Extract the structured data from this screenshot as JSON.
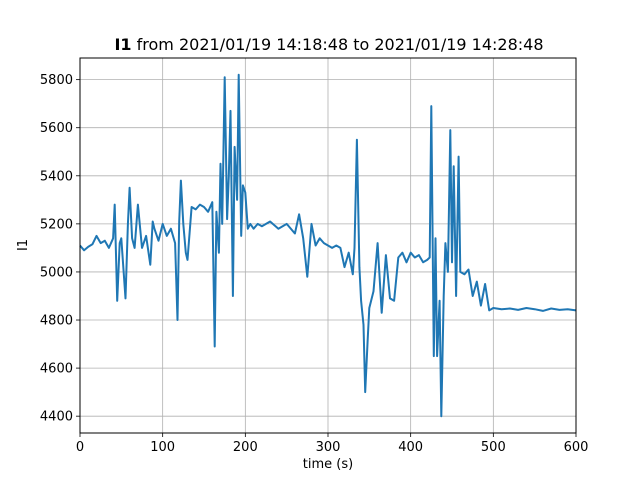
{
  "chart_data": {
    "type": "line",
    "title": {
      "bold": "I1",
      "rest": " from 2021/01/19 14:18:48 to 2021/01/19 14:28:48"
    },
    "xlabel": "time (s)",
    "ylabel": "I1",
    "xlim": [
      0,
      600
    ],
    "ylim": [
      4330,
      5890
    ],
    "x_ticks": [
      0,
      100,
      200,
      300,
      400,
      500,
      600
    ],
    "y_ticks": [
      4400,
      4600,
      4800,
      5000,
      5200,
      5400,
      5600,
      5800
    ],
    "grid": true,
    "legend": "none",
    "series": [
      {
        "color": "#1f77b4",
        "x": [
          0,
          5,
          10,
          15,
          20,
          25,
          30,
          35,
          40,
          42,
          45,
          48,
          50,
          55,
          58,
          60,
          63,
          66,
          70,
          75,
          80,
          85,
          88,
          90,
          95,
          100,
          105,
          110,
          115,
          118,
          120,
          122,
          125,
          128,
          130,
          135,
          140,
          145,
          150,
          155,
          160,
          163,
          165,
          168,
          170,
          172,
          175,
          178,
          180,
          182,
          185,
          187,
          190,
          192,
          195,
          197,
          200,
          203,
          206,
          210,
          215,
          220,
          230,
          240,
          250,
          260,
          265,
          270,
          275,
          280,
          285,
          290,
          295,
          300,
          305,
          310,
          315,
          320,
          325,
          330,
          332,
          335,
          338,
          340,
          343,
          345,
          348,
          350,
          355,
          360,
          365,
          370,
          375,
          380,
          385,
          390,
          395,
          400,
          405,
          410,
          415,
          420,
          423,
          425,
          428,
          430,
          432,
          435,
          437,
          440,
          442,
          445,
          448,
          450,
          452,
          455,
          458,
          460,
          465,
          470,
          475,
          480,
          485,
          490,
          495,
          500,
          510,
          520,
          530,
          540,
          550,
          560,
          570,
          580,
          590,
          600
        ],
        "values": [
          5110,
          5090,
          5105,
          5115,
          5150,
          5120,
          5130,
          5100,
          5140,
          5280,
          4880,
          5120,
          5140,
          4890,
          5200,
          5350,
          5140,
          5100,
          5280,
          5100,
          5150,
          5030,
          5210,
          5180,
          5130,
          5200,
          5150,
          5180,
          5120,
          4800,
          5210,
          5380,
          5200,
          5080,
          5050,
          5270,
          5260,
          5280,
          5270,
          5250,
          5290,
          4690,
          5250,
          5080,
          5450,
          5200,
          5810,
          5220,
          5400,
          5670,
          4900,
          5520,
          5300,
          5820,
          5150,
          5360,
          5330,
          5180,
          5200,
          5180,
          5200,
          5190,
          5210,
          5180,
          5200,
          5160,
          5240,
          5140,
          4980,
          5200,
          5110,
          5140,
          5120,
          5110,
          5100,
          5110,
          5100,
          5020,
          5080,
          4990,
          5100,
          5550,
          5020,
          4880,
          4780,
          4500,
          4720,
          4850,
          4920,
          5120,
          4830,
          5070,
          4890,
          4880,
          5060,
          5080,
          5040,
          5080,
          5060,
          5070,
          5040,
          5050,
          5060,
          5690,
          4650,
          5140,
          4650,
          4880,
          4400,
          4900,
          5120,
          5000,
          5590,
          5040,
          5440,
          4900,
          5480,
          5000,
          4990,
          5010,
          4900,
          4960,
          4860,
          4950,
          4840,
          4850,
          4845,
          4848,
          4842,
          4850,
          4845,
          4838,
          4848,
          4842,
          4845,
          4840
        ]
      }
    ]
  }
}
